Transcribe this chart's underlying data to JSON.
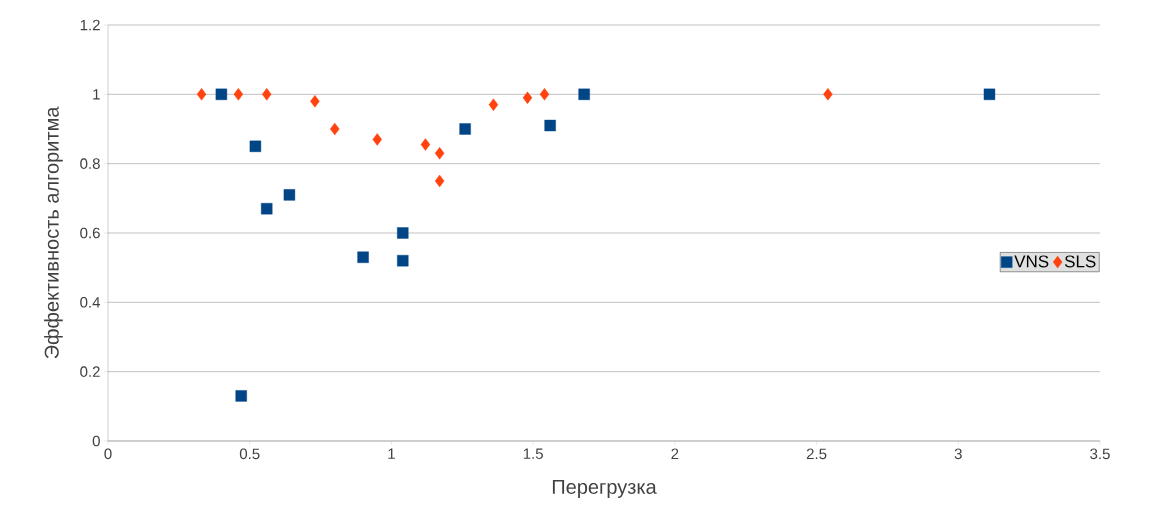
{
  "chart_data": {
    "type": "scatter",
    "xlabel": "Перегрузка",
    "ylabel": "Эффективность алгоритма",
    "xlim": [
      0,
      3.5
    ],
    "xticks": [
      0,
      0.5,
      1,
      1.5,
      2,
      2.5,
      3,
      3.5
    ],
    "ylim": [
      0,
      1.2
    ],
    "yticks": [
      0,
      0.2,
      0.4,
      0.6,
      0.8,
      1,
      1.2
    ],
    "grid": "y",
    "legend": "right",
    "series": [
      {
        "name": "VNS",
        "color": "#004586",
        "marker": "square",
        "x": [
          0.4,
          0.52,
          0.47,
          0.56,
          0.64,
          0.9,
          1.04,
          1.04,
          1.26,
          1.56,
          1.68,
          3.11
        ],
        "values": [
          1.0,
          0.85,
          0.13,
          0.67,
          0.71,
          0.53,
          0.6,
          0.52,
          0.9,
          0.91,
          1.0,
          1.0
        ]
      },
      {
        "name": "SLS",
        "color": "#ff420e",
        "marker": "diamond",
        "x": [
          0.33,
          0.46,
          0.56,
          0.73,
          0.8,
          0.95,
          1.12,
          1.17,
          1.17,
          1.36,
          1.48,
          1.54,
          2.54
        ],
        "values": [
          1.0,
          1.0,
          1.0,
          0.98,
          0.9,
          0.87,
          0.855,
          0.83,
          0.75,
          0.97,
          0.99,
          1.0,
          1.0
        ]
      }
    ]
  }
}
